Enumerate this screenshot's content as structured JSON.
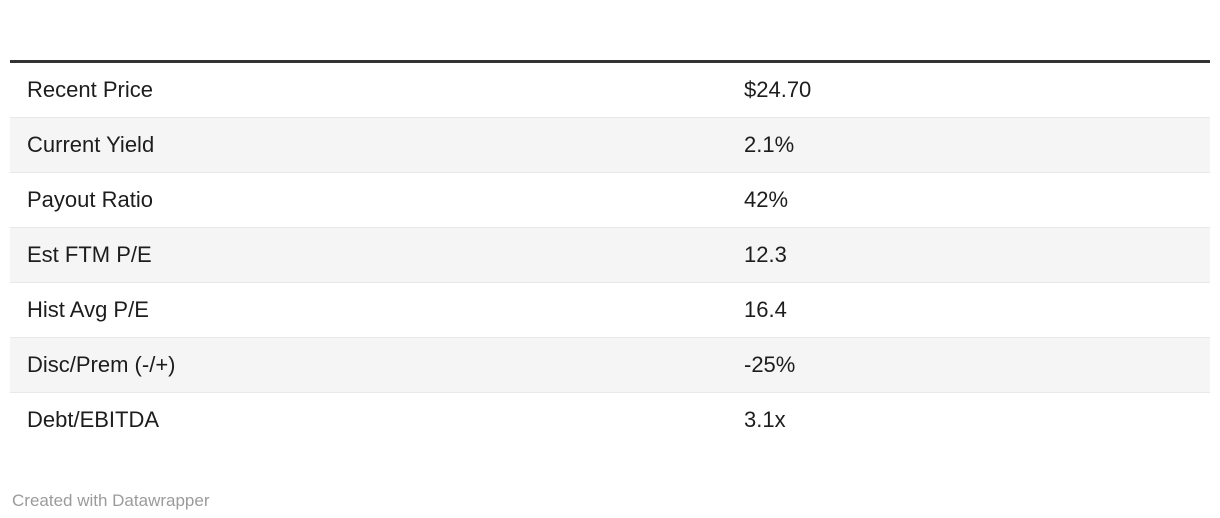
{
  "chart_data": {
    "type": "table",
    "header_visible": false,
    "columns": [
      "label",
      "value"
    ],
    "rows": [
      {
        "label": "Recent Price",
        "value": "$24.70"
      },
      {
        "label": "Current Yield",
        "value": "2.1%"
      },
      {
        "label": "Payout Ratio",
        "value": "42%"
      },
      {
        "label": "Est FTM P/E",
        "value": "12.3"
      },
      {
        "label": "Hist Avg P/E",
        "value": "16.4"
      },
      {
        "label": "Disc/Prem (-/+)",
        "value": "-25%"
      },
      {
        "label": "Debt/EBITDA",
        "value": "3.1x"
      }
    ],
    "layout": {
      "zebra_striping": true,
      "top_rule": true
    }
  },
  "footer": {
    "attribution": "Created with Datawrapper"
  },
  "colors": {
    "top_rule": "#333333",
    "row_alt_background": "#f5f5f5",
    "row_separator": "#e8e8e8",
    "text": "#1d1d1d",
    "attribution_text": "#9b9b9b",
    "background": "#ffffff"
  }
}
